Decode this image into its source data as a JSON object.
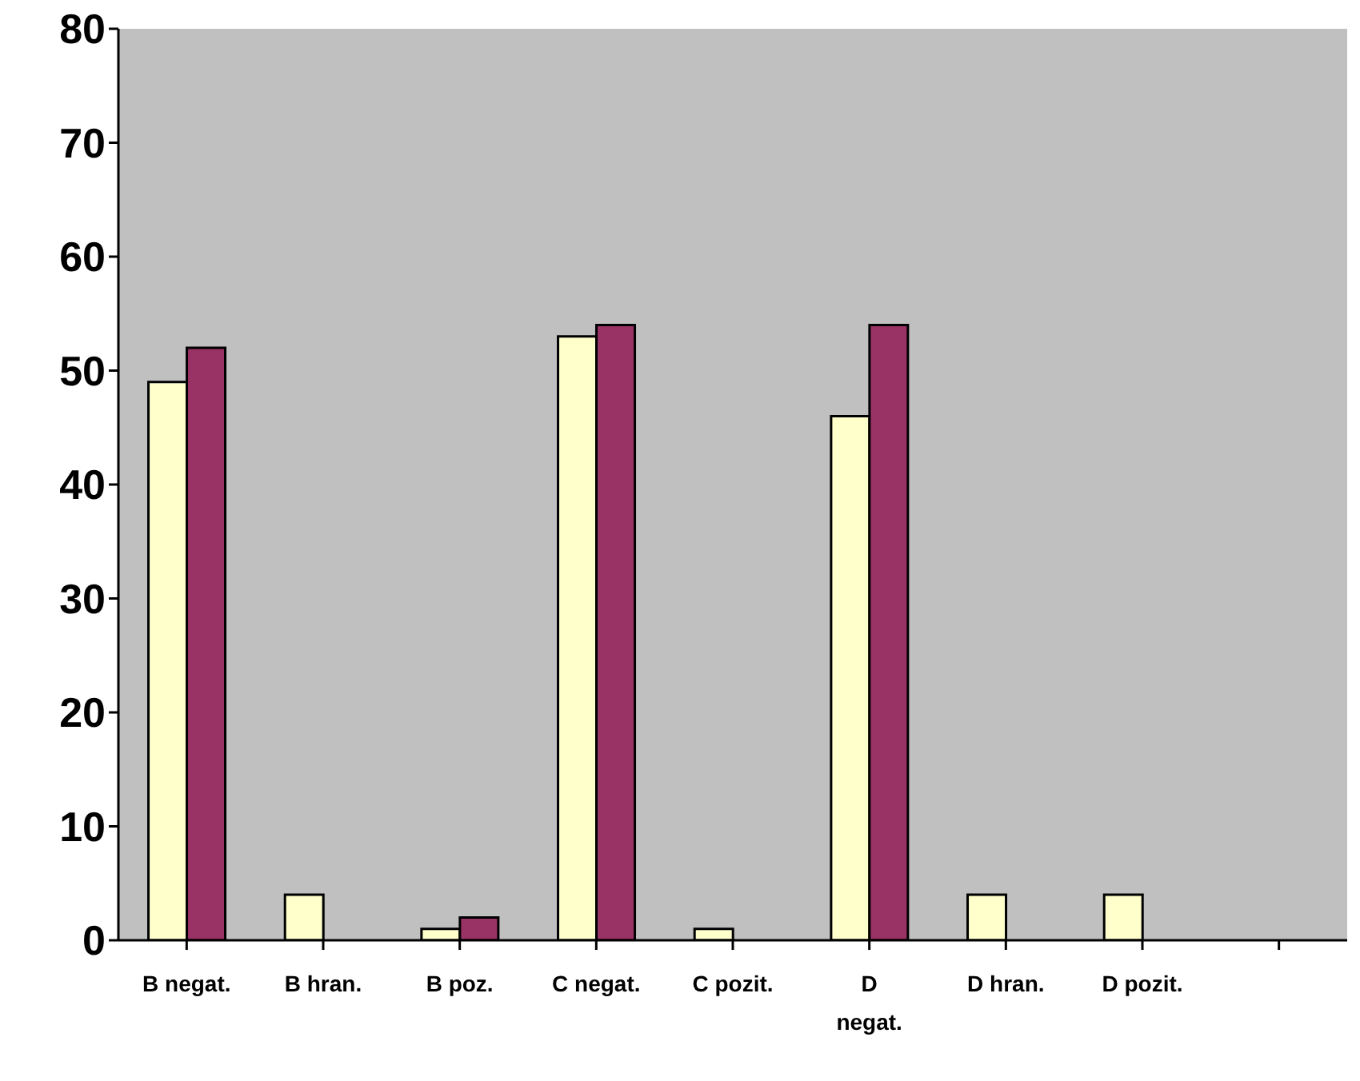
{
  "chart_data": {
    "type": "bar",
    "categories": [
      "B negat.",
      "B hran.",
      "B poz.",
      "C negat.",
      "C pozit.",
      "D negat.",
      "D hran.",
      "D pozit.",
      null
    ],
    "series": [
      {
        "color": "#ffffcc",
        "values": [
          49,
          4,
          1,
          53,
          1,
          46,
          4,
          4,
          null
        ]
      },
      {
        "color": "#993366",
        "values": [
          52,
          0,
          2,
          54,
          0,
          54,
          0,
          0,
          0
        ]
      }
    ],
    "ylim": [
      0,
      80
    ],
    "yticks": [
      0,
      10,
      20,
      30,
      40,
      50,
      60,
      70,
      80
    ],
    "grid": false,
    "legend": false
  }
}
